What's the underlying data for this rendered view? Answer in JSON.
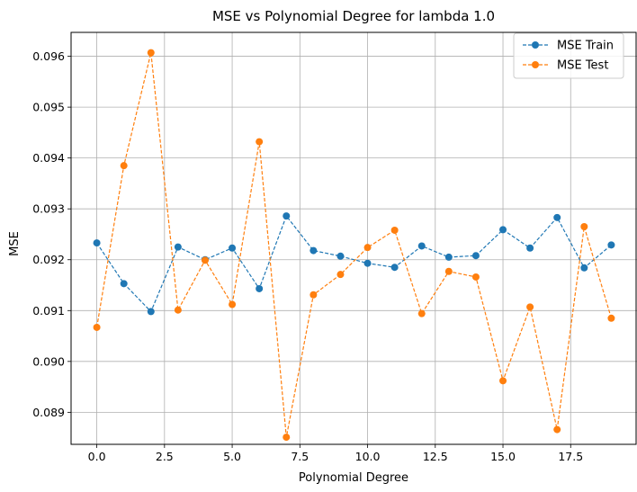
{
  "chart_data": {
    "type": "line",
    "title": "MSE vs Polynomial Degree for lambda 1.0",
    "xlabel": "Polynomial Degree",
    "ylabel": "MSE",
    "xlim": [
      -0.95,
      19.95
    ],
    "ylim": [
      0.08837,
      0.09647
    ],
    "xticks": [
      0.0,
      2.5,
      5.0,
      7.5,
      10.0,
      12.5,
      15.0,
      17.5
    ],
    "xtick_labels": [
      "0.0",
      "2.5",
      "5.0",
      "7.5",
      "10.0",
      "12.5",
      "15.0",
      "17.5"
    ],
    "yticks": [
      0.089,
      0.09,
      0.091,
      0.092,
      0.093,
      0.094,
      0.095,
      0.096
    ],
    "ytick_labels": [
      "0.089",
      "0.090",
      "0.091",
      "0.092",
      "0.093",
      "0.094",
      "0.095",
      "0.096"
    ],
    "grid": true,
    "legend_position": "top-right",
    "x": [
      0,
      1,
      2,
      3,
      4,
      5,
      6,
      7,
      8,
      9,
      10,
      11,
      12,
      13,
      14,
      15,
      16,
      17,
      18,
      19
    ],
    "series": [
      {
        "name": "MSE Train",
        "color": "#1f77b4",
        "values": [
          0.09233,
          0.09153,
          0.09098,
          0.09225,
          0.092,
          0.09223,
          0.09143,
          0.09286,
          0.09218,
          0.09207,
          0.09193,
          0.09185,
          0.09227,
          0.09205,
          0.09208,
          0.09259,
          0.09223,
          0.09283,
          0.09184,
          0.09229
        ]
      },
      {
        "name": "MSE Test",
        "color": "#ff7f0e",
        "values": [
          0.09067,
          0.09385,
          0.09607,
          0.09101,
          0.09199,
          0.09112,
          0.09432,
          0.08851,
          0.09131,
          0.09171,
          0.09224,
          0.09258,
          0.09094,
          0.09177,
          0.09166,
          0.08962,
          0.09107,
          0.08866,
          0.09265,
          0.09085
        ]
      }
    ]
  }
}
